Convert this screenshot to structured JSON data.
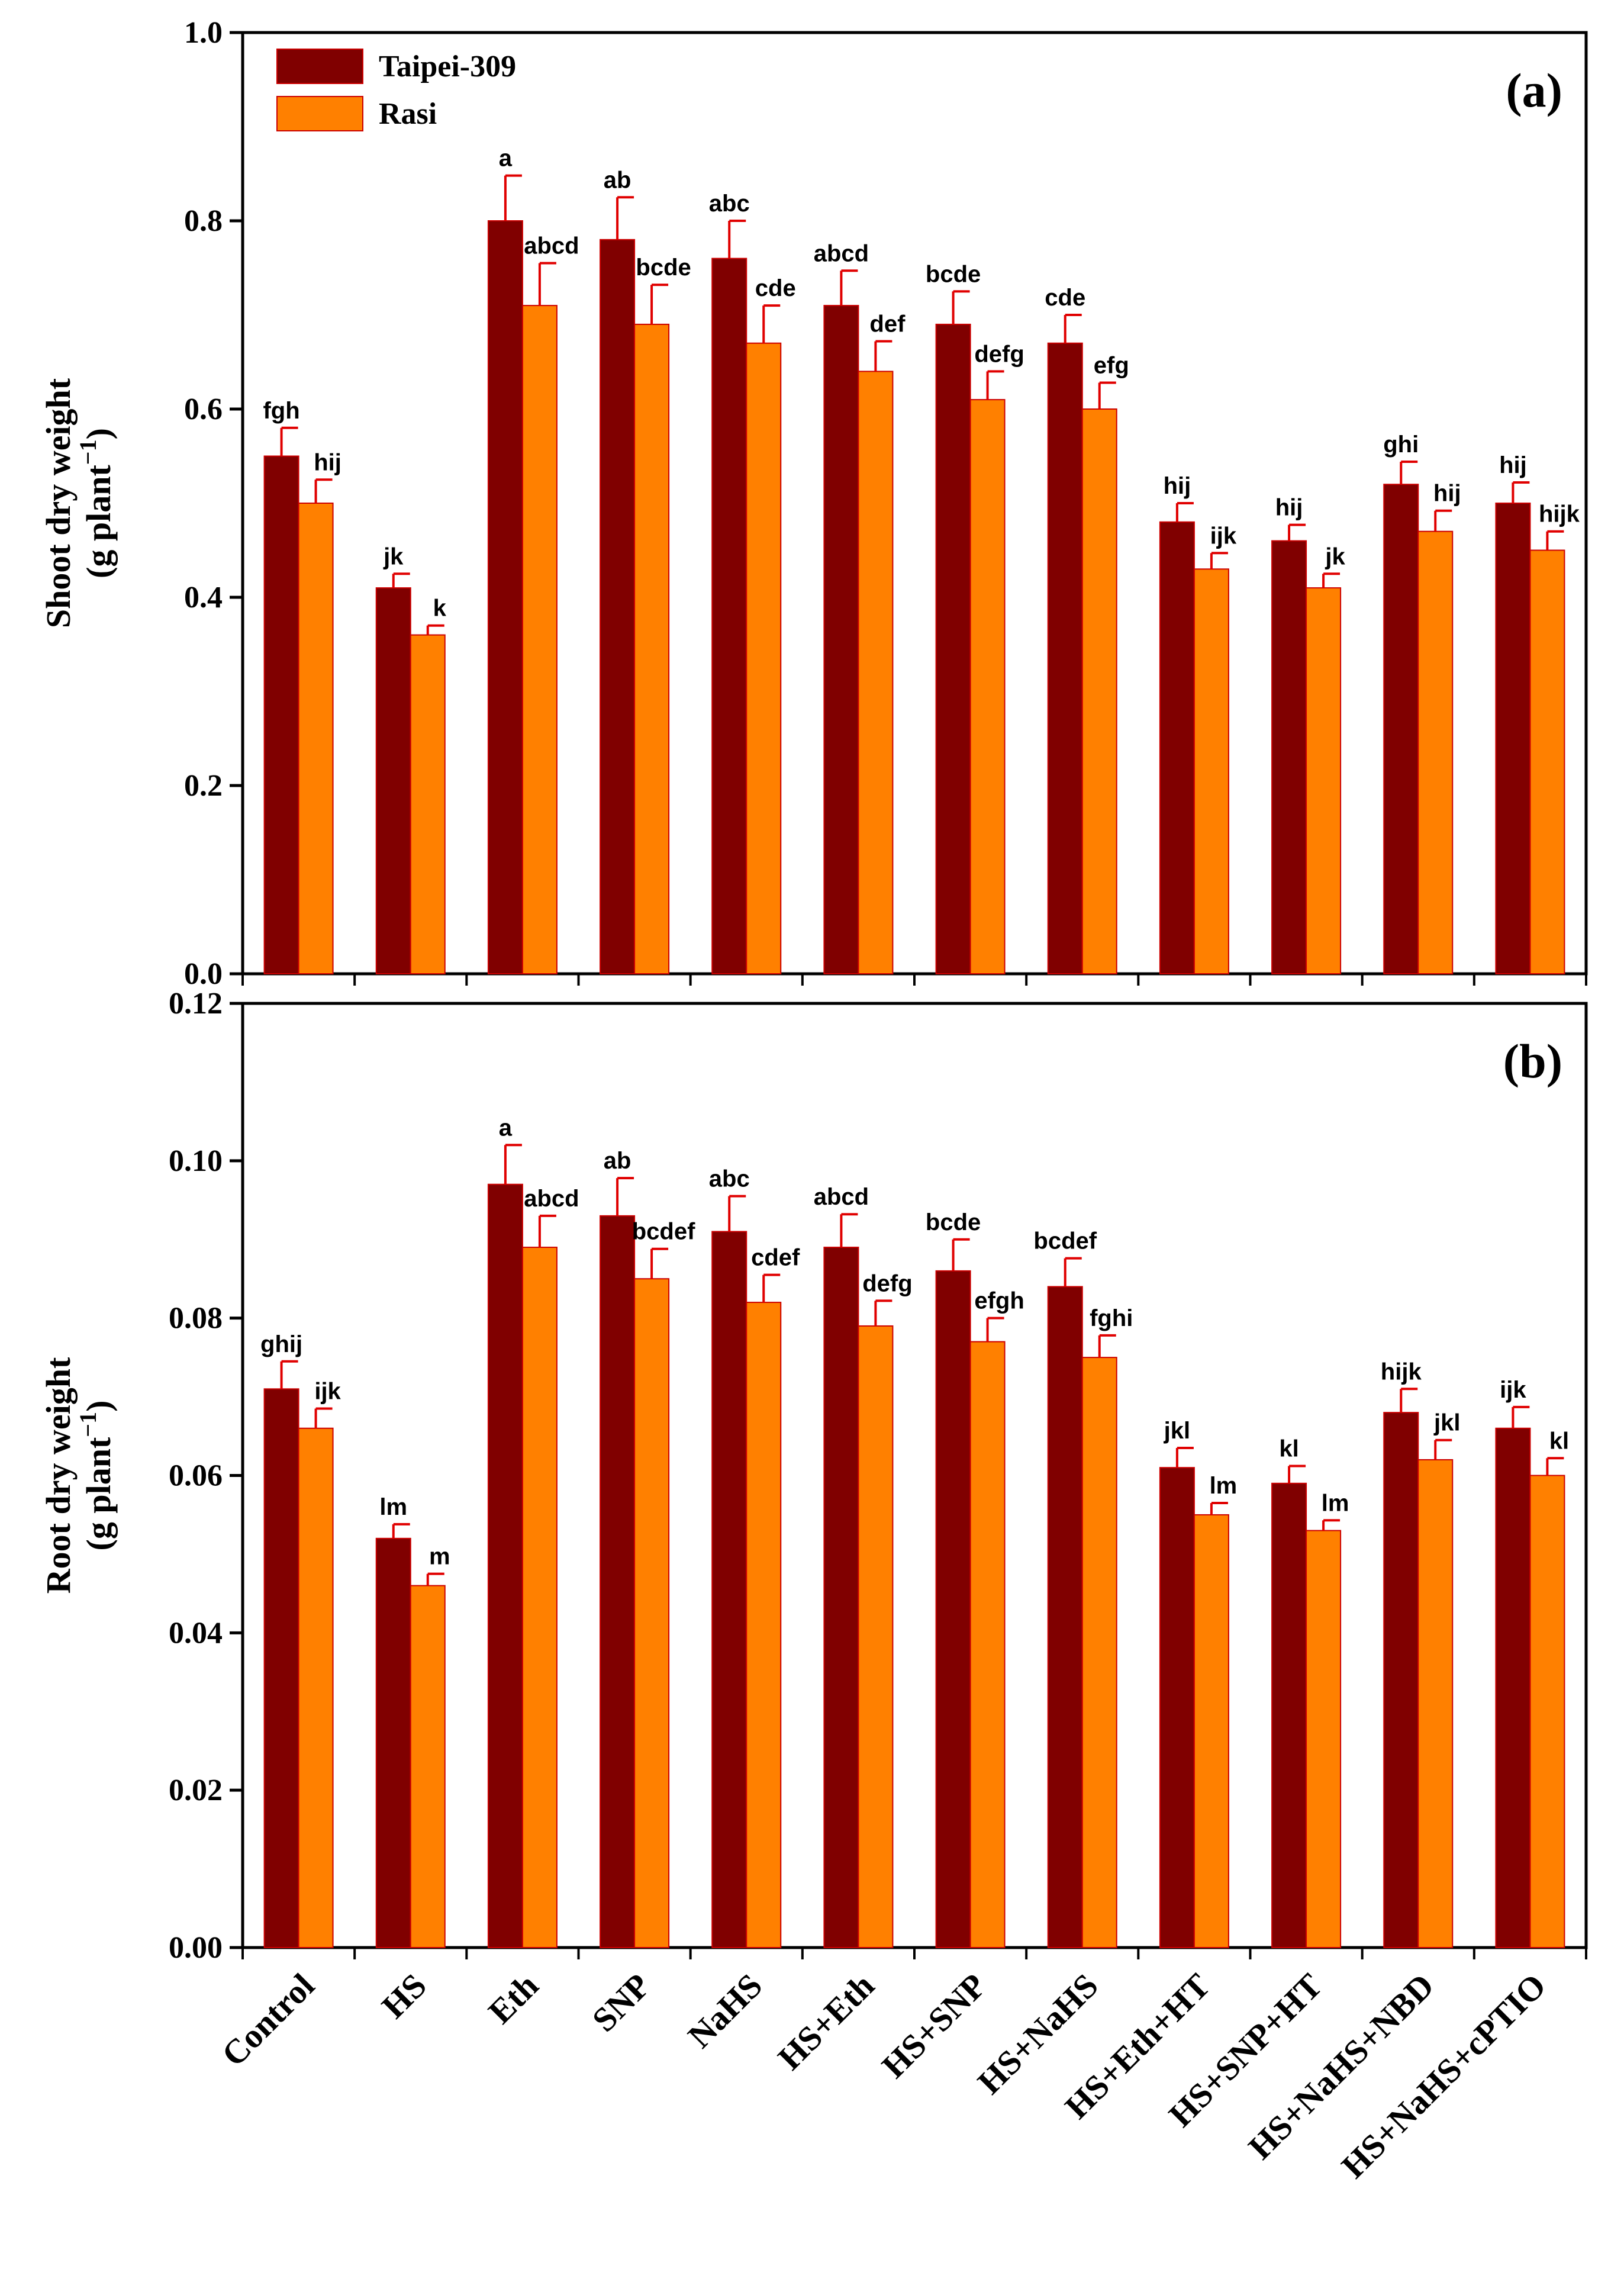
{
  "categories": [
    "Control",
    "HS",
    "Eth",
    "SNP",
    "NaHS",
    "HS+Eth",
    "HS+SNP",
    "HS+NaHS",
    "HS+Eth+HT",
    "HS+SNP+HT",
    "HS+NaHS+NBD",
    "HS+NaHS+cPTIO"
  ],
  "legend": [
    {
      "name": "Taipei-309",
      "color": "#800000"
    },
    {
      "name": "Rasi",
      "color": "#ff8000"
    }
  ],
  "colors": {
    "error_bar": "#e00000",
    "bar_edge": "#cc0000"
  },
  "chart_data": [
    {
      "type": "bar",
      "panel_label": "(a)",
      "ylabel": "Shoot dry weight",
      "ylabel_unit": "(g plant",
      "ylabel_sup": "−1",
      "ylabel_close": ")",
      "ylim": [
        0,
        1.0
      ],
      "yticks": [
        "0.0",
        "0.2",
        "0.4",
        "0.6",
        "0.8",
        "1.0"
      ],
      "show_xtick_labels": false,
      "legend_position": "top-left",
      "series": [
        {
          "name": "Taipei-309",
          "values": [
            0.55,
            0.41,
            0.8,
            0.78,
            0.76,
            0.71,
            0.69,
            0.67,
            0.48,
            0.46,
            0.52,
            0.5
          ],
          "errors": [
            0.03,
            0.015,
            0.048,
            0.045,
            0.04,
            0.037,
            0.035,
            0.03,
            0.02,
            0.017,
            0.024,
            0.022
          ],
          "letters": [
            "fgh",
            "jk",
            "a",
            "ab",
            "abc",
            "abcd",
            "bcde",
            "cde",
            "hij",
            "hij",
            "ghi",
            "hij"
          ]
        },
        {
          "name": "Rasi",
          "values": [
            0.5,
            0.36,
            0.71,
            0.69,
            0.67,
            0.64,
            0.61,
            0.6,
            0.43,
            0.41,
            0.47,
            0.45
          ],
          "errors": [
            0.025,
            0.01,
            0.045,
            0.042,
            0.04,
            0.032,
            0.03,
            0.028,
            0.017,
            0.015,
            0.022,
            0.02
          ],
          "letters": [
            "hij",
            "k",
            "abcd",
            "bcde",
            "cde",
            "def",
            "defg",
            "efg",
            "ijk",
            "jk",
            "hij",
            "hijk"
          ]
        }
      ]
    },
    {
      "type": "bar",
      "panel_label": "(b)",
      "ylabel": "Root dry weight",
      "ylabel_unit": "(g plant",
      "ylabel_sup": "−1",
      "ylabel_close": ")",
      "ylim": [
        0,
        0.12
      ],
      "yticks": [
        "0.00",
        "0.02",
        "0.04",
        "0.06",
        "0.08",
        "0.10",
        "0.12"
      ],
      "show_xtick_labels": true,
      "series": [
        {
          "name": "Taipei-309",
          "values": [
            0.071,
            0.052,
            0.097,
            0.093,
            0.091,
            0.089,
            0.086,
            0.084,
            0.061,
            0.059,
            0.068,
            0.066
          ],
          "errors": [
            0.0035,
            0.0018,
            0.005,
            0.0048,
            0.0045,
            0.0042,
            0.004,
            0.0036,
            0.0025,
            0.0022,
            0.003,
            0.0027
          ],
          "letters": [
            "ghij",
            "lm",
            "a",
            "ab",
            "abc",
            "abcd",
            "bcde",
            "bcdef",
            "jkl",
            "kl",
            "hijk",
            "ijk"
          ]
        },
        {
          "name": "Rasi",
          "values": [
            0.066,
            0.046,
            0.089,
            0.085,
            0.082,
            0.079,
            0.077,
            0.075,
            0.055,
            0.053,
            0.062,
            0.06
          ],
          "errors": [
            0.0025,
            0.0015,
            0.004,
            0.0038,
            0.0035,
            0.0032,
            0.003,
            0.0028,
            0.0015,
            0.0013,
            0.0025,
            0.0022
          ],
          "letters": [
            "ijk",
            "m",
            "abcd",
            "bcdef",
            "cdef",
            "defg",
            "efgh",
            "fghi",
            "lm",
            "lm",
            "jkl",
            "kl"
          ]
        }
      ]
    }
  ]
}
